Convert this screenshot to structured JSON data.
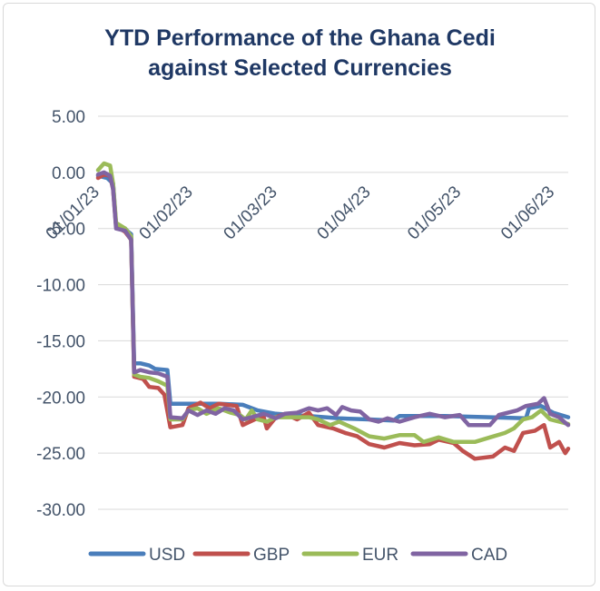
{
  "chart_data": {
    "type": "line",
    "title_line1": "YTD Performance of the Ghana Cedi",
    "title_line2": "against Selected Currencies",
    "xlabel": "",
    "ylabel": "",
    "ylim": [
      -30,
      5
    ],
    "yticks": [
      5,
      0,
      -5,
      -10,
      -15,
      -20,
      -25,
      -30
    ],
    "ytick_labels": [
      "5.00",
      "0.00",
      "-5.00",
      "-10.00",
      "-15.00",
      "-20.00",
      "-25.00",
      "-30.00"
    ],
    "xlim": [
      0,
      156
    ],
    "xticks": [
      0,
      31,
      59,
      90,
      120,
      151
    ],
    "xtick_labels": [
      "01/01/23",
      "01/02/23",
      "01/03/23",
      "01/04/23",
      "01/05/23",
      "01/06/23"
    ],
    "grid": true,
    "legend_position": "bottom",
    "series": [
      {
        "name": "USD",
        "color": "#4a7ebb",
        "points": [
          [
            0,
            -0.3
          ],
          [
            3,
            -0.5
          ],
          [
            5,
            -1.0
          ],
          [
            6,
            -4.8
          ],
          [
            9,
            -5.0
          ],
          [
            10,
            -5.3
          ],
          [
            11,
            -5.5
          ],
          [
            12,
            -17.0
          ],
          [
            14,
            -17.0
          ],
          [
            17,
            -17.2
          ],
          [
            19,
            -17.5
          ],
          [
            23,
            -17.6
          ],
          [
            24,
            -20.6
          ],
          [
            30,
            -20.6
          ],
          [
            40,
            -20.6
          ],
          [
            48,
            -20.7
          ],
          [
            53,
            -21.2
          ],
          [
            59,
            -21.5
          ],
          [
            70,
            -21.7
          ],
          [
            80,
            -21.9
          ],
          [
            90,
            -22.0
          ],
          [
            98,
            -22.1
          ],
          [
            100,
            -21.7
          ],
          [
            115,
            -21.7
          ],
          [
            130,
            -21.8
          ],
          [
            142,
            -21.9
          ],
          [
            143,
            -21.0
          ],
          [
            147,
            -20.8
          ],
          [
            151,
            -21.4
          ],
          [
            156,
            -21.8
          ]
        ]
      },
      {
        "name": "GBP",
        "color": "#c0504d",
        "points": [
          [
            0,
            -0.5
          ],
          [
            2,
            -0.2
          ],
          [
            4,
            -0.3
          ],
          [
            5,
            -1.5
          ],
          [
            6,
            -4.8
          ],
          [
            9,
            -5.3
          ],
          [
            11,
            -6.0
          ],
          [
            12,
            -18.2
          ],
          [
            15,
            -18.4
          ],
          [
            17,
            -19.1
          ],
          [
            20,
            -19.2
          ],
          [
            22,
            -19.8
          ],
          [
            24,
            -22.7
          ],
          [
            28,
            -22.5
          ],
          [
            30,
            -21.0
          ],
          [
            34,
            -20.5
          ],
          [
            37,
            -21.0
          ],
          [
            40,
            -20.6
          ],
          [
            46,
            -20.8
          ],
          [
            48,
            -22.5
          ],
          [
            52,
            -22.0
          ],
          [
            55,
            -21.8
          ],
          [
            56,
            -22.8
          ],
          [
            59,
            -21.8
          ],
          [
            62,
            -21.5
          ],
          [
            66,
            -22.0
          ],
          [
            70,
            -21.4
          ],
          [
            73,
            -22.5
          ],
          [
            78,
            -22.8
          ],
          [
            82,
            -23.2
          ],
          [
            86,
            -23.5
          ],
          [
            90,
            -24.2
          ],
          [
            95,
            -24.5
          ],
          [
            100,
            -24.1
          ],
          [
            105,
            -24.3
          ],
          [
            110,
            -24.2
          ],
          [
            113,
            -23.8
          ],
          [
            118,
            -24.1
          ],
          [
            121,
            -24.8
          ],
          [
            125,
            -25.5
          ],
          [
            131,
            -25.3
          ],
          [
            135,
            -24.5
          ],
          [
            138,
            -24.8
          ],
          [
            141,
            -23.2
          ],
          [
            145,
            -23.0
          ],
          [
            148,
            -22.5
          ],
          [
            150,
            -24.5
          ],
          [
            153,
            -24.0
          ],
          [
            155,
            -25.0
          ],
          [
            156,
            -24.6
          ]
        ]
      },
      {
        "name": "EUR",
        "color": "#9bbb59",
        "points": [
          [
            0,
            0.2
          ],
          [
            2,
            0.8
          ],
          [
            4,
            0.6
          ],
          [
            5,
            -1.0
          ],
          [
            6,
            -4.5
          ],
          [
            9,
            -5.0
          ],
          [
            11,
            -5.7
          ],
          [
            12,
            -18.0
          ],
          [
            14,
            -18.2
          ],
          [
            17,
            -18.3
          ],
          [
            20,
            -18.6
          ],
          [
            23,
            -19.0
          ],
          [
            24,
            -22.0
          ],
          [
            28,
            -22.0
          ],
          [
            30,
            -21.2
          ],
          [
            33,
            -21.0
          ],
          [
            36,
            -21.5
          ],
          [
            40,
            -21.0
          ],
          [
            44,
            -21.4
          ],
          [
            47,
            -21.6
          ],
          [
            49,
            -22.0
          ],
          [
            51,
            -21.2
          ],
          [
            53,
            -22.0
          ],
          [
            56,
            -22.2
          ],
          [
            59,
            -21.8
          ],
          [
            62,
            -21.8
          ],
          [
            66,
            -21.8
          ],
          [
            70,
            -21.8
          ],
          [
            73,
            -22.0
          ],
          [
            77,
            -22.5
          ],
          [
            80,
            -22.2
          ],
          [
            85,
            -22.8
          ],
          [
            90,
            -23.5
          ],
          [
            95,
            -23.7
          ],
          [
            100,
            -23.4
          ],
          [
            105,
            -23.4
          ],
          [
            108,
            -24.0
          ],
          [
            113,
            -23.6
          ],
          [
            118,
            -24.0
          ],
          [
            121,
            -24.0
          ],
          [
            125,
            -24.0
          ],
          [
            130,
            -23.6
          ],
          [
            135,
            -23.2
          ],
          [
            138,
            -22.8
          ],
          [
            141,
            -22.0
          ],
          [
            144,
            -21.8
          ],
          [
            147,
            -21.2
          ],
          [
            150,
            -22.0
          ],
          [
            153,
            -22.2
          ],
          [
            156,
            -22.4
          ]
        ]
      },
      {
        "name": "CAD",
        "color": "#8064a2",
        "points": [
          [
            0,
            -0.2
          ],
          [
            2,
            0.0
          ],
          [
            4,
            -0.3
          ],
          [
            5,
            -1.5
          ],
          [
            6,
            -5.0
          ],
          [
            9,
            -5.2
          ],
          [
            11,
            -6.0
          ],
          [
            12,
            -17.8
          ],
          [
            14,
            -17.6
          ],
          [
            17,
            -17.8
          ],
          [
            20,
            -17.9
          ],
          [
            23,
            -18.2
          ],
          [
            24,
            -21.8
          ],
          [
            28,
            -21.9
          ],
          [
            30,
            -21.2
          ],
          [
            33,
            -21.6
          ],
          [
            36,
            -21.2
          ],
          [
            39,
            -21.5
          ],
          [
            42,
            -21.0
          ],
          [
            45,
            -21.2
          ],
          [
            48,
            -22.0
          ],
          [
            51,
            -21.8
          ],
          [
            55,
            -21.5
          ],
          [
            59,
            -21.9
          ],
          [
            62,
            -21.5
          ],
          [
            66,
            -21.4
          ],
          [
            70,
            -21.0
          ],
          [
            73,
            -21.2
          ],
          [
            76,
            -21.0
          ],
          [
            79,
            -21.6
          ],
          [
            81,
            -20.9
          ],
          [
            84,
            -21.2
          ],
          [
            87,
            -21.3
          ],
          [
            90,
            -22.0
          ],
          [
            93,
            -22.2
          ],
          [
            96,
            -21.9
          ],
          [
            100,
            -22.2
          ],
          [
            105,
            -21.8
          ],
          [
            110,
            -21.5
          ],
          [
            115,
            -21.8
          ],
          [
            120,
            -21.6
          ],
          [
            123,
            -22.5
          ],
          [
            126,
            -22.5
          ],
          [
            130,
            -22.5
          ],
          [
            133,
            -21.6
          ],
          [
            136,
            -21.4
          ],
          [
            139,
            -21.2
          ],
          [
            142,
            -20.8
          ],
          [
            146,
            -20.6
          ],
          [
            148,
            -20.1
          ],
          [
            150,
            -21.5
          ],
          [
            153,
            -21.8
          ],
          [
            155,
            -22.3
          ],
          [
            156,
            -22.5
          ]
        ]
      }
    ]
  }
}
